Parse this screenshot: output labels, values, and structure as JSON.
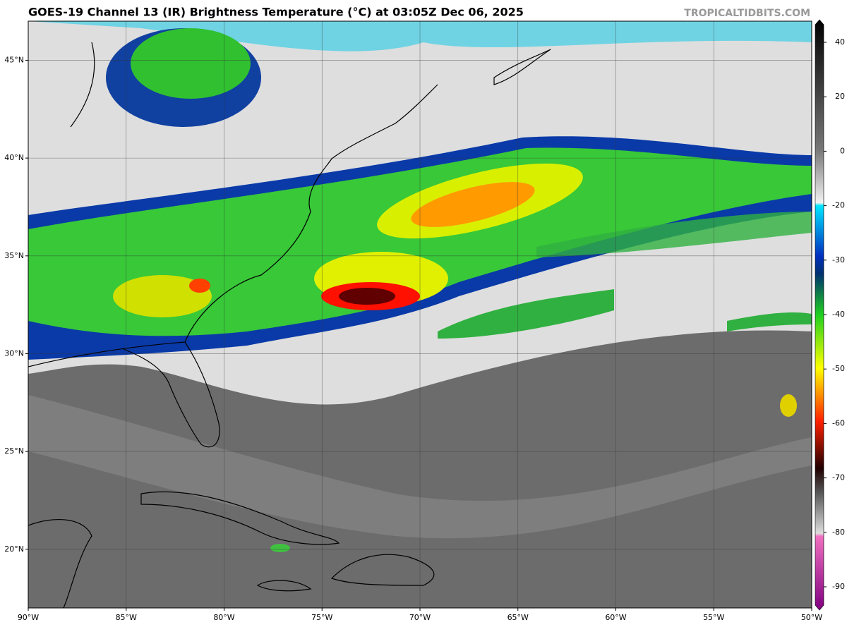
{
  "header": {
    "title": "GOES-19 Channel 13 (IR) Brightness Temperature (°C) at 03:05Z Dec 06, 2025",
    "credit": "TROPICALTIDBITS.COM"
  },
  "map": {
    "xlim": [
      -90,
      -50
    ],
    "ylim": [
      17,
      47
    ],
    "xticks": [
      {
        "value": -90,
        "label": "90°W"
      },
      {
        "value": -85,
        "label": "85°W"
      },
      {
        "value": -80,
        "label": "80°W"
      },
      {
        "value": -75,
        "label": "75°W"
      },
      {
        "value": -70,
        "label": "70°W"
      },
      {
        "value": -65,
        "label": "65°W"
      },
      {
        "value": -60,
        "label": "60°W"
      },
      {
        "value": -55,
        "label": "55°W"
      },
      {
        "value": -50,
        "label": "50°W"
      }
    ],
    "yticks": [
      {
        "value": 45,
        "label": "45°N"
      },
      {
        "value": 40,
        "label": "40°N"
      },
      {
        "value": 35,
        "label": "35°N"
      },
      {
        "value": 30,
        "label": "30°N"
      },
      {
        "value": 25,
        "label": "25°N"
      },
      {
        "value": 20,
        "label": "20°N"
      }
    ]
  },
  "colorbar": {
    "ticks": [
      40,
      20,
      0,
      -20,
      -30,
      -40,
      -50,
      -60,
      -70,
      -80,
      -90
    ]
  }
}
